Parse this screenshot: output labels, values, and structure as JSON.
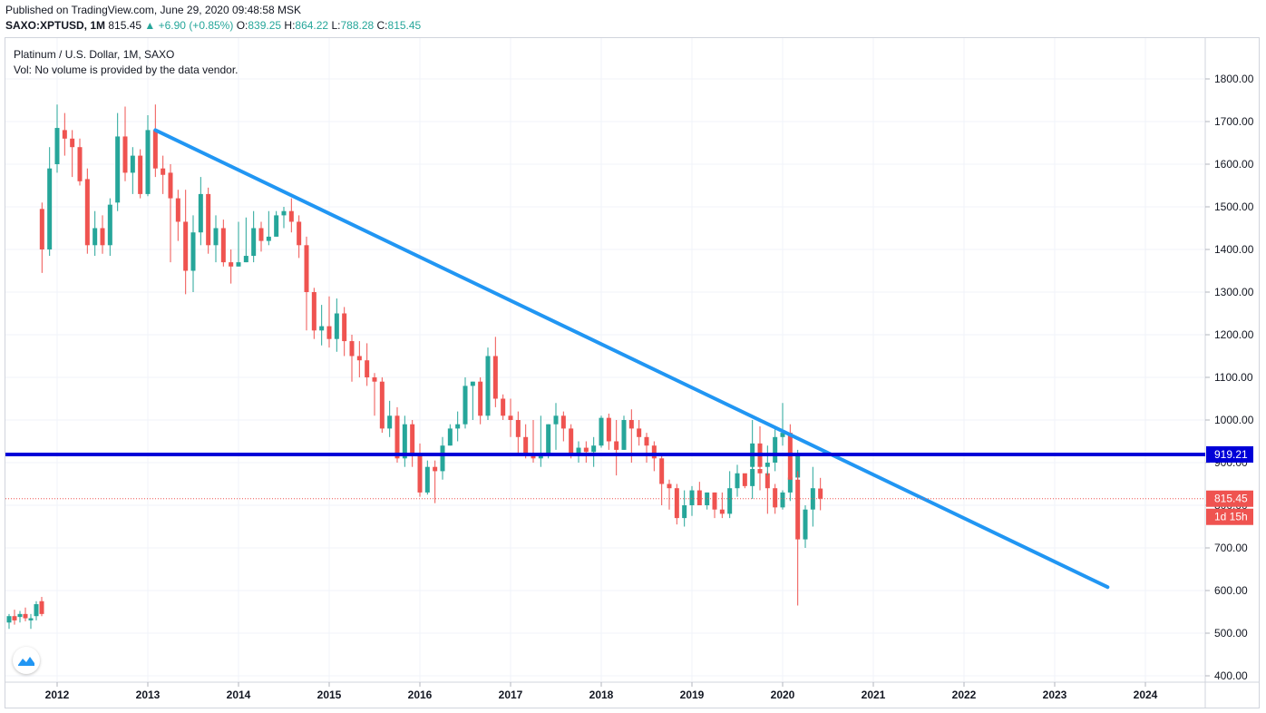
{
  "header": {
    "published": "Published on TradingView.com, June 29, 2020 09:48:58 MSK",
    "symbol": "SAXO:XPTUSD, 1M",
    "last": "815.45",
    "change": "▲ +6.90 (+0.85%)",
    "open_label": "O:",
    "open": "839.25",
    "high_label": "H:",
    "high": "864.22",
    "low_label": "L:",
    "low": "788.28",
    "close_label": "C:",
    "close": "815.45"
  },
  "legend": {
    "title": "Platinum / U.S. Dollar, 1M, SAXO",
    "volume": "Vol: No volume is provided by the data vendor."
  },
  "price_tags": {
    "level": "919.21",
    "last": "815.45",
    "countdown": "1d 15h"
  },
  "colors": {
    "up": "#26a69a",
    "down": "#ef5350",
    "trendline": "#2196f3",
    "level_line": "#0000d8",
    "grid": "#f0f3fa"
  },
  "chart_data": {
    "type": "candlestick",
    "title": "Platinum / U.S. Dollar, 1M, SAXO",
    "interval": "1M",
    "y_ticks": [
      400,
      500,
      600,
      700,
      800,
      900,
      1000,
      1100,
      1200,
      1300,
      1400,
      1500,
      1600,
      1700,
      1800
    ],
    "y_tick_labels": [
      "400.00",
      "500.00",
      "600.00",
      "700.00",
      "800.00",
      "900.00",
      "1000.00",
      "1100.00",
      "1200.00",
      "1300.00",
      "1400.00",
      "1500.00",
      "1600.00",
      "1700.00",
      "1800.00"
    ],
    "x_tick_labels": [
      "2012",
      "2013",
      "2014",
      "2015",
      "2016",
      "2017",
      "2018",
      "2019",
      "2020",
      "2021",
      "2022",
      "2023",
      "2024"
    ],
    "ylim": [
      390,
      1835
    ],
    "horizontal_level": 919.21,
    "last_price": 815.45,
    "trendline": {
      "from": {
        "date": "2013-02",
        "price": 1680
      },
      "to": {
        "date": "2023-08",
        "price": 608
      }
    },
    "early_candles": [
      {
        "date": "2011-04",
        "o": 525,
        "h": 545,
        "l": 510,
        "c": 540
      },
      {
        "date": "2011-05",
        "o": 540,
        "h": 555,
        "l": 520,
        "c": 530
      },
      {
        "date": "2011-06",
        "o": 538,
        "h": 552,
        "l": 525,
        "c": 545
      },
      {
        "date": "2011-07",
        "o": 545,
        "h": 560,
        "l": 528,
        "c": 535
      },
      {
        "date": "2011-08",
        "o": 530,
        "h": 545,
        "l": 510,
        "c": 535
      },
      {
        "date": "2011-09",
        "o": 540,
        "h": 575,
        "l": 530,
        "c": 568
      },
      {
        "date": "2011-10",
        "o": 575,
        "h": 585,
        "l": 540,
        "c": 545
      }
    ],
    "candles": [
      {
        "date": "2011-11",
        "o": 1495,
        "h": 1510,
        "l": 1345,
        "c": 1400
      },
      {
        "date": "2011-12",
        "o": 1400,
        "h": 1640,
        "l": 1385,
        "c": 1590
      },
      {
        "date": "2012-01",
        "o": 1600,
        "h": 1740,
        "l": 1580,
        "c": 1685
      },
      {
        "date": "2012-02",
        "o": 1680,
        "h": 1720,
        "l": 1620,
        "c": 1660
      },
      {
        "date": "2012-03",
        "o": 1660,
        "h": 1680,
        "l": 1570,
        "c": 1640
      },
      {
        "date": "2012-04",
        "o": 1640,
        "h": 1660,
        "l": 1550,
        "c": 1560
      },
      {
        "date": "2012-05",
        "o": 1565,
        "h": 1590,
        "l": 1390,
        "c": 1410
      },
      {
        "date": "2012-06",
        "o": 1410,
        "h": 1490,
        "l": 1385,
        "c": 1450
      },
      {
        "date": "2012-07",
        "o": 1450,
        "h": 1480,
        "l": 1390,
        "c": 1410
      },
      {
        "date": "2012-08",
        "o": 1410,
        "h": 1520,
        "l": 1385,
        "c": 1505
      },
      {
        "date": "2012-09",
        "o": 1510,
        "h": 1720,
        "l": 1490,
        "c": 1665
      },
      {
        "date": "2012-10",
        "o": 1665,
        "h": 1735,
        "l": 1560,
        "c": 1580
      },
      {
        "date": "2012-11",
        "o": 1580,
        "h": 1640,
        "l": 1530,
        "c": 1620
      },
      {
        "date": "2012-12",
        "o": 1620,
        "h": 1635,
        "l": 1520,
        "c": 1530
      },
      {
        "date": "2013-01",
        "o": 1530,
        "h": 1715,
        "l": 1525,
        "c": 1680
      },
      {
        "date": "2013-02",
        "o": 1680,
        "h": 1740,
        "l": 1570,
        "c": 1590
      },
      {
        "date": "2013-03",
        "o": 1590,
        "h": 1620,
        "l": 1530,
        "c": 1575
      },
      {
        "date": "2013-04",
        "o": 1580,
        "h": 1600,
        "l": 1370,
        "c": 1520
      },
      {
        "date": "2013-05",
        "o": 1520,
        "h": 1540,
        "l": 1420,
        "c": 1465
      },
      {
        "date": "2013-06",
        "o": 1465,
        "h": 1540,
        "l": 1295,
        "c": 1350
      },
      {
        "date": "2013-07",
        "o": 1350,
        "h": 1480,
        "l": 1300,
        "c": 1440
      },
      {
        "date": "2013-08",
        "o": 1440,
        "h": 1570,
        "l": 1410,
        "c": 1530
      },
      {
        "date": "2013-09",
        "o": 1530,
        "h": 1545,
        "l": 1390,
        "c": 1410
      },
      {
        "date": "2013-10",
        "o": 1410,
        "h": 1480,
        "l": 1370,
        "c": 1450
      },
      {
        "date": "2013-11",
        "o": 1450,
        "h": 1470,
        "l": 1360,
        "c": 1370
      },
      {
        "date": "2013-12",
        "o": 1370,
        "h": 1400,
        "l": 1320,
        "c": 1360
      },
      {
        "date": "2014-01",
        "o": 1360,
        "h": 1465,
        "l": 1360,
        "c": 1370
      },
      {
        "date": "2014-02",
        "o": 1370,
        "h": 1475,
        "l": 1370,
        "c": 1385
      },
      {
        "date": "2014-03",
        "o": 1385,
        "h": 1490,
        "l": 1370,
        "c": 1450
      },
      {
        "date": "2014-04",
        "o": 1450,
        "h": 1465,
        "l": 1395,
        "c": 1420
      },
      {
        "date": "2014-05",
        "o": 1420,
        "h": 1490,
        "l": 1410,
        "c": 1430
      },
      {
        "date": "2014-06",
        "o": 1430,
        "h": 1490,
        "l": 1430,
        "c": 1480
      },
      {
        "date": "2014-07",
        "o": 1480,
        "h": 1500,
        "l": 1450,
        "c": 1490
      },
      {
        "date": "2014-08",
        "o": 1490,
        "h": 1520,
        "l": 1440,
        "c": 1465
      },
      {
        "date": "2014-09",
        "o": 1465,
        "h": 1480,
        "l": 1380,
        "c": 1410
      },
      {
        "date": "2014-10",
        "o": 1410,
        "h": 1430,
        "l": 1210,
        "c": 1300
      },
      {
        "date": "2014-11",
        "o": 1300,
        "h": 1310,
        "l": 1190,
        "c": 1210
      },
      {
        "date": "2014-12",
        "o": 1210,
        "h": 1270,
        "l": 1175,
        "c": 1220
      },
      {
        "date": "2015-01",
        "o": 1220,
        "h": 1290,
        "l": 1170,
        "c": 1190
      },
      {
        "date": "2015-02",
        "o": 1190,
        "h": 1285,
        "l": 1160,
        "c": 1250
      },
      {
        "date": "2015-03",
        "o": 1250,
        "h": 1265,
        "l": 1150,
        "c": 1185
      },
      {
        "date": "2015-04",
        "o": 1185,
        "h": 1200,
        "l": 1090,
        "c": 1150
      },
      {
        "date": "2015-05",
        "o": 1150,
        "h": 1185,
        "l": 1100,
        "c": 1140
      },
      {
        "date": "2015-06",
        "o": 1140,
        "h": 1180,
        "l": 1080,
        "c": 1100
      },
      {
        "date": "2015-07",
        "o": 1100,
        "h": 1110,
        "l": 1010,
        "c": 1090
      },
      {
        "date": "2015-08",
        "o": 1090,
        "h": 1100,
        "l": 970,
        "c": 980
      },
      {
        "date": "2015-09",
        "o": 980,
        "h": 1045,
        "l": 960,
        "c": 1010
      },
      {
        "date": "2015-10",
        "o": 1010,
        "h": 1030,
        "l": 900,
        "c": 910
      },
      {
        "date": "2015-11",
        "o": 910,
        "h": 1010,
        "l": 890,
        "c": 990
      },
      {
        "date": "2015-12",
        "o": 990,
        "h": 1000,
        "l": 890,
        "c": 920
      },
      {
        "date": "2016-01",
        "o": 920,
        "h": 945,
        "l": 820,
        "c": 830
      },
      {
        "date": "2016-02",
        "o": 830,
        "h": 905,
        "l": 825,
        "c": 890
      },
      {
        "date": "2016-03",
        "o": 890,
        "h": 905,
        "l": 805,
        "c": 880
      },
      {
        "date": "2016-04",
        "o": 880,
        "h": 960,
        "l": 860,
        "c": 940
      },
      {
        "date": "2016-05",
        "o": 940,
        "h": 990,
        "l": 940,
        "c": 980
      },
      {
        "date": "2016-06",
        "o": 980,
        "h": 1020,
        "l": 950,
        "c": 990
      },
      {
        "date": "2016-07",
        "o": 990,
        "h": 1100,
        "l": 980,
        "c": 1080
      },
      {
        "date": "2016-08",
        "o": 1080,
        "h": 1090,
        "l": 1000,
        "c": 1090
      },
      {
        "date": "2016-09",
        "o": 1090,
        "h": 1100,
        "l": 990,
        "c": 1010
      },
      {
        "date": "2016-10",
        "o": 1010,
        "h": 1170,
        "l": 1000,
        "c": 1150
      },
      {
        "date": "2016-11",
        "o": 1150,
        "h": 1195,
        "l": 1030,
        "c": 1050
      },
      {
        "date": "2016-12",
        "o": 1050,
        "h": 1060,
        "l": 1000,
        "c": 1010
      },
      {
        "date": "2017-01",
        "o": 1010,
        "h": 1050,
        "l": 960,
        "c": 1000
      },
      {
        "date": "2017-02",
        "o": 1000,
        "h": 1020,
        "l": 920,
        "c": 960
      },
      {
        "date": "2017-03",
        "o": 960,
        "h": 990,
        "l": 910,
        "c": 920
      },
      {
        "date": "2017-04",
        "o": 920,
        "h": 1000,
        "l": 900,
        "c": 910
      },
      {
        "date": "2017-05",
        "o": 910,
        "h": 1010,
        "l": 890,
        "c": 920
      },
      {
        "date": "2017-06",
        "o": 920,
        "h": 990,
        "l": 910,
        "c": 990
      },
      {
        "date": "2017-07",
        "o": 990,
        "h": 1040,
        "l": 930,
        "c": 1010
      },
      {
        "date": "2017-08",
        "o": 1010,
        "h": 1020,
        "l": 950,
        "c": 980
      },
      {
        "date": "2017-09",
        "o": 980,
        "h": 990,
        "l": 910,
        "c": 920
      },
      {
        "date": "2017-10",
        "o": 920,
        "h": 950,
        "l": 900,
        "c": 935
      },
      {
        "date": "2017-11",
        "o": 935,
        "h": 950,
        "l": 900,
        "c": 925
      },
      {
        "date": "2017-12",
        "o": 925,
        "h": 960,
        "l": 890,
        "c": 940
      },
      {
        "date": "2018-01",
        "o": 940,
        "h": 1010,
        "l": 935,
        "c": 1005
      },
      {
        "date": "2018-02",
        "o": 1005,
        "h": 1015,
        "l": 930,
        "c": 950
      },
      {
        "date": "2018-03",
        "o": 950,
        "h": 1000,
        "l": 870,
        "c": 930
      },
      {
        "date": "2018-04",
        "o": 930,
        "h": 1010,
        "l": 930,
        "c": 1000
      },
      {
        "date": "2018-05",
        "o": 1000,
        "h": 1025,
        "l": 900,
        "c": 980
      },
      {
        "date": "2018-06",
        "o": 980,
        "h": 1000,
        "l": 940,
        "c": 960
      },
      {
        "date": "2018-07",
        "o": 960,
        "h": 970,
        "l": 900,
        "c": 940
      },
      {
        "date": "2018-08",
        "o": 940,
        "h": 950,
        "l": 880,
        "c": 910
      },
      {
        "date": "2018-09",
        "o": 910,
        "h": 920,
        "l": 800,
        "c": 850
      },
      {
        "date": "2018-10",
        "o": 850,
        "h": 860,
        "l": 790,
        "c": 840
      },
      {
        "date": "2018-11",
        "o": 840,
        "h": 850,
        "l": 755,
        "c": 770
      },
      {
        "date": "2018-12",
        "o": 770,
        "h": 835,
        "l": 750,
        "c": 800
      },
      {
        "date": "2019-01",
        "o": 800,
        "h": 845,
        "l": 775,
        "c": 835
      },
      {
        "date": "2019-02",
        "o": 835,
        "h": 855,
        "l": 810,
        "c": 800
      },
      {
        "date": "2019-03",
        "o": 800,
        "h": 830,
        "l": 790,
        "c": 830
      },
      {
        "date": "2019-04",
        "o": 830,
        "h": 830,
        "l": 770,
        "c": 790
      },
      {
        "date": "2019-05",
        "o": 790,
        "h": 830,
        "l": 770,
        "c": 780
      },
      {
        "date": "2019-06",
        "o": 780,
        "h": 880,
        "l": 770,
        "c": 840
      },
      {
        "date": "2019-07",
        "o": 840,
        "h": 895,
        "l": 820,
        "c": 875
      },
      {
        "date": "2019-08",
        "o": 875,
        "h": 870,
        "l": 840,
        "c": 845
      },
      {
        "date": "2019-09",
        "o": 845,
        "h": 915,
        "l": 815,
        "c": 885
      },
      {
        "date": "2019-10",
        "o": 885,
        "h": 920,
        "l": 835,
        "c": 875
      },
      {
        "date": "2019-11",
        "o": 875,
        "h": 880,
        "l": 780,
        "c": 840
      },
      {
        "date": "2019-12",
        "o": 840,
        "h": 850,
        "l": 780,
        "c": 795
      },
      {
        "date": "2020-01",
        "o": 795,
        "h": 835,
        "l": 790,
        "c": 830
      },
      {
        "date": "2020-02",
        "o": 830,
        "h": 870,
        "l": 810,
        "c": 865
      },
      {
        "date": "2020-03",
        "o": 865,
        "h": 930,
        "l": 850,
        "c": 920
      }
    ],
    "late_candles": [
      {
        "date": "2019-09",
        "o": 890,
        "h": 1000,
        "l": 870,
        "c": 945
      },
      {
        "date": "2019-10",
        "o": 945,
        "h": 985,
        "l": 870,
        "c": 890
      },
      {
        "date": "2019-11",
        "o": 890,
        "h": 940,
        "l": 870,
        "c": 900
      },
      {
        "date": "2019-12",
        "o": 900,
        "h": 985,
        "l": 880,
        "c": 960
      },
      {
        "date": "2020-01",
        "o": 960,
        "h": 1040,
        "l": 940,
        "c": 970
      },
      {
        "date": "2020-02",
        "o": 970,
        "h": 990,
        "l": 860,
        "c": 860
      },
      {
        "date": "2020-03",
        "o": 860,
        "h": 880,
        "l": 565,
        "c": 720
      },
      {
        "date": "2020-04",
        "o": 720,
        "h": 800,
        "l": 700,
        "c": 790
      },
      {
        "date": "2020-05",
        "o": 790,
        "h": 890,
        "l": 750,
        "c": 840
      },
      {
        "date": "2020-06",
        "o": 839.25,
        "h": 864.22,
        "l": 788.28,
        "c": 815.45
      }
    ]
  }
}
